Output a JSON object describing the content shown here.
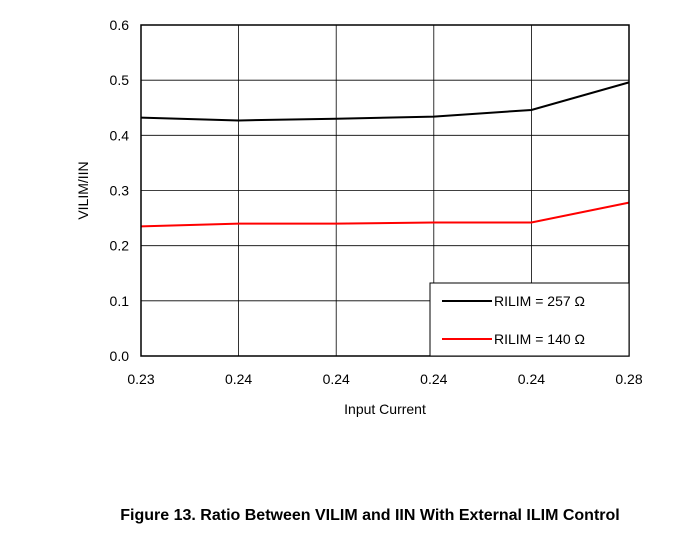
{
  "caption": "Figure 13. Ratio Between VILIM and IIN With External ILIM Control",
  "chart_data": {
    "type": "line",
    "xlabel": "Input Current",
    "ylabel": "VILIM/IIN",
    "categories": [
      "0.23",
      "0.24",
      "0.24",
      "0.24",
      "0.24",
      "0.28"
    ],
    "ylim": [
      0,
      0.6
    ],
    "yticks": [
      "0.0",
      "0.1",
      "0.2",
      "0.3",
      "0.4",
      "0.5",
      "0.6"
    ],
    "grid": true,
    "legend_position": "bottom-right",
    "series": [
      {
        "name": "RILIM = 257 Ω",
        "color": "#000000",
        "values": [
          0.432,
          0.427,
          0.43,
          0.434,
          0.446,
          0.496
        ]
      },
      {
        "name": "RILIM = 140 Ω",
        "color": "#ff0000",
        "values": [
          0.235,
          0.24,
          0.24,
          0.242,
          0.242,
          0.278
        ]
      }
    ]
  }
}
